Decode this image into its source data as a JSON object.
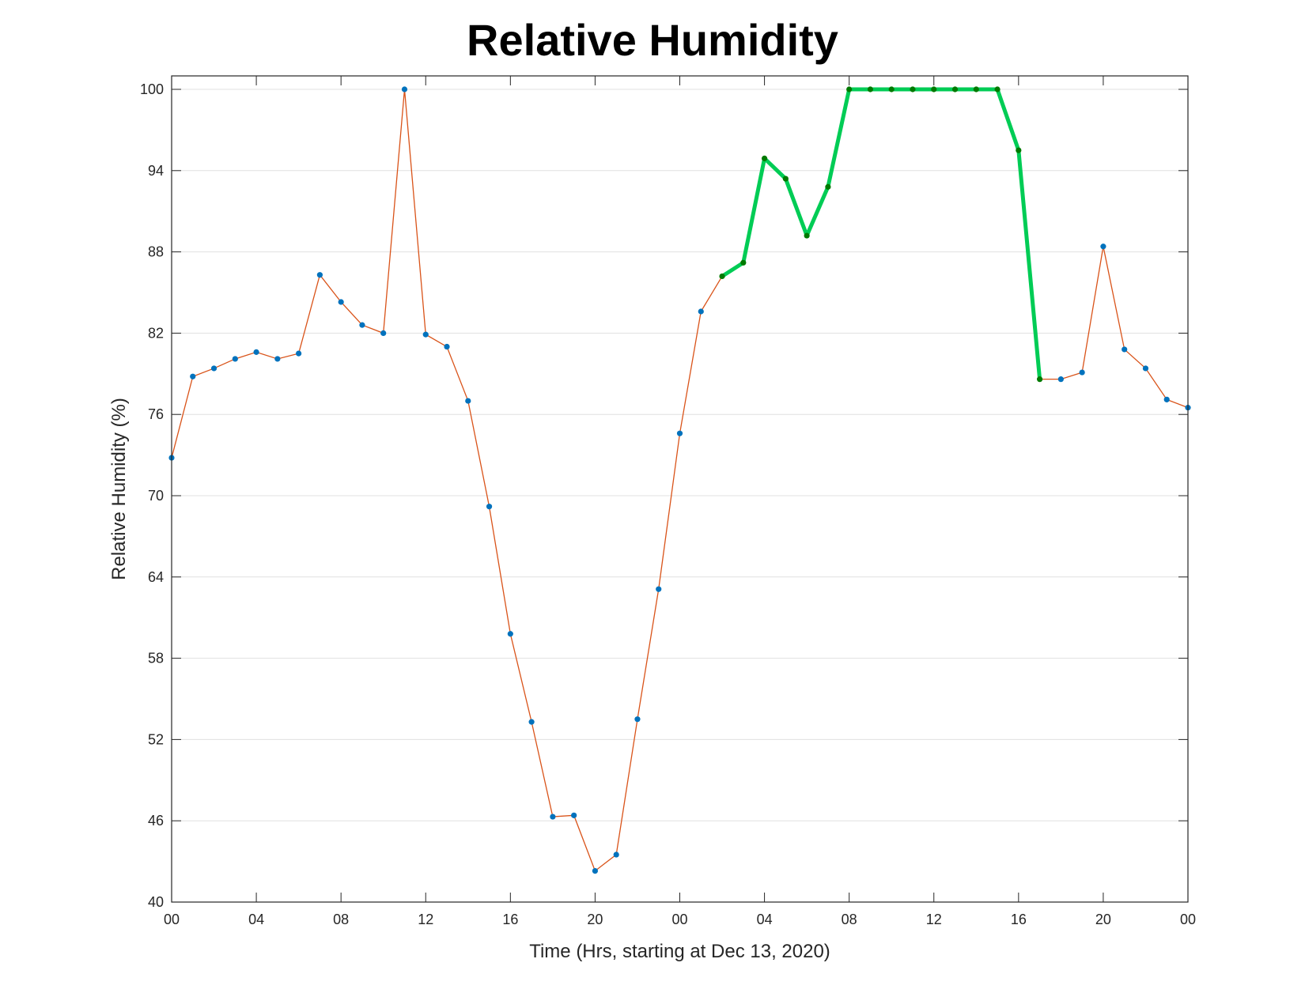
{
  "chart_data": {
    "type": "line",
    "title": "Relative Humidity",
    "xlabel": "Time (Hrs, starting at Dec 13, 2020)",
    "ylabel": "Relative Humidity (%)",
    "ylim": [
      40,
      100
    ],
    "xlim": [
      0,
      48
    ],
    "x_tick_labels": [
      "00",
      "04",
      "08",
      "12",
      "16",
      "20",
      "00",
      "04",
      "08",
      "12",
      "16",
      "20",
      "00"
    ],
    "y_ticks": [
      40,
      46,
      52,
      58,
      64,
      70,
      76,
      82,
      88,
      94,
      100
    ],
    "grid": "horizontal",
    "x": [
      0,
      1,
      2,
      3,
      4,
      5,
      6,
      7,
      8,
      9,
      10,
      11,
      12,
      13,
      14,
      15,
      16,
      17,
      18,
      19,
      20,
      21,
      22,
      23,
      24,
      25,
      26,
      27,
      28,
      29,
      30,
      31,
      32,
      33,
      34,
      35,
      36,
      37,
      38,
      39,
      40,
      41,
      42,
      43,
      44,
      45,
      46,
      47,
      48
    ],
    "series": [
      {
        "values": [
          72.8,
          78.8,
          79.4,
          80.1,
          80.6,
          80.1,
          80.5,
          86.3,
          84.3,
          82.6,
          82.0,
          100,
          81.9,
          81.0,
          77.0,
          69.2,
          59.8,
          53.3,
          46.3,
          46.4,
          42.3,
          43.5,
          53.5,
          63.1,
          74.6,
          83.6,
          86.2,
          87.2,
          94.9,
          93.4,
          89.2,
          92.8,
          100,
          100,
          100,
          100,
          100,
          100,
          100,
          100,
          95.5,
          78.6,
          78.6,
          79.1,
          88.4,
          80.8,
          79.4,
          77.1,
          76.5
        ]
      }
    ],
    "highlight": {
      "x_start": 26,
      "x_end": 41
    },
    "colors": {
      "line": "#d95319",
      "marker": "#0072bd",
      "highlight_line": "#00cc55",
      "highlight_marker": "#007a00",
      "grid": "#e0e0e0",
      "axis": "#262626"
    }
  }
}
